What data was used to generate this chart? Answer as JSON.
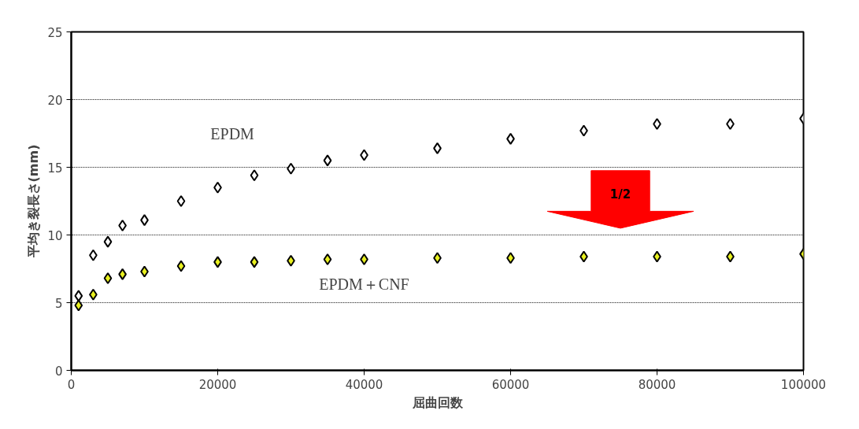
{
  "chart_data": {
    "type": "scatter",
    "xlabel": "屈曲回数",
    "ylabel": "平均き裂長さ(mm)",
    "x": [
      1000,
      3000,
      5000,
      7000,
      10000,
      15000,
      20000,
      25000,
      30000,
      35000,
      40000,
      50000,
      60000,
      70000,
      80000,
      90000,
      100000
    ],
    "series": [
      {
        "name": "EPDM",
        "color": "#ffffff",
        "values": [
          5.5,
          8.5,
          9.5,
          10.7,
          11.1,
          12.5,
          13.5,
          14.4,
          14.9,
          15.5,
          15.9,
          16.4,
          17.1,
          17.7,
          18.2,
          18.2,
          18.6
        ]
      },
      {
        "name": "EPDM＋CNF",
        "color": "#e8f020",
        "values": [
          4.8,
          5.6,
          6.8,
          7.1,
          7.3,
          7.7,
          8.0,
          8.0,
          8.1,
          8.2,
          8.2,
          8.3,
          8.3,
          8.4,
          8.4,
          8.4,
          8.6
        ]
      }
    ],
    "annotations": [
      "1/2"
    ],
    "xlim": [
      0,
      100000
    ],
    "ylim": [
      0,
      25
    ],
    "xticks": [
      0,
      20000,
      40000,
      60000,
      80000,
      100000
    ],
    "yticks": [
      0,
      5,
      10,
      15,
      20,
      25
    ],
    "grid": "y",
    "marker": "diamond"
  }
}
